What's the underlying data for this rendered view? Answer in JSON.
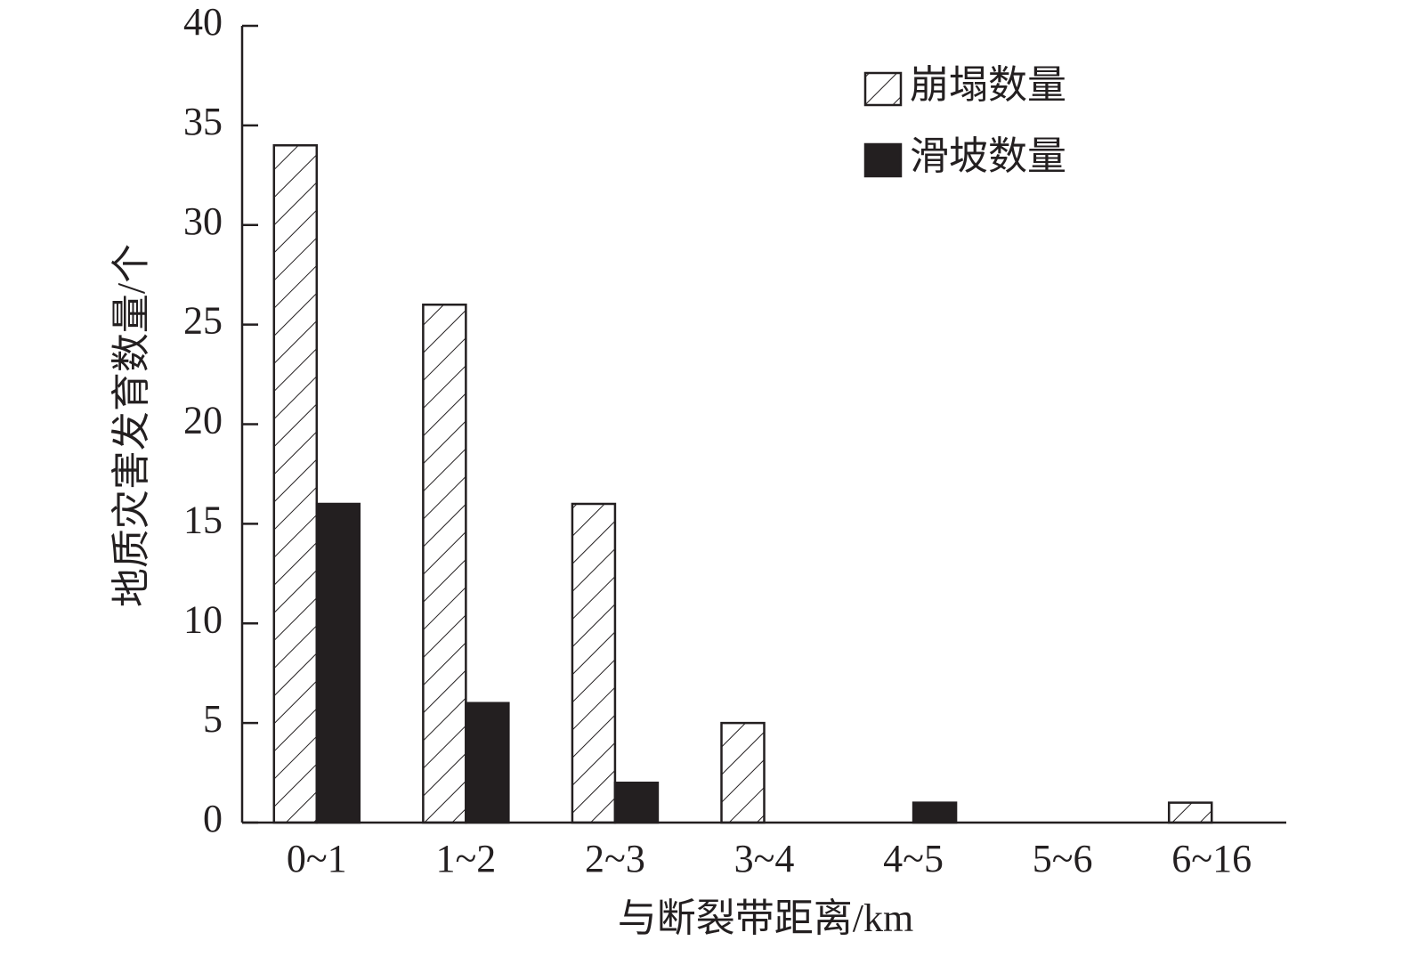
{
  "chart_data": {
    "type": "bar",
    "xlabel": "与断裂带距离/km",
    "ylabel": "地质灾害发育数量/个",
    "categories": [
      "0~1",
      "1~2",
      "2~3",
      "3~4",
      "4~5",
      "5~6",
      "6~16"
    ],
    "series": [
      {
        "name": "崩塌数量",
        "color": "#231f20",
        "hatch": true,
        "values": [
          34,
          26,
          16,
          5,
          0,
          0,
          1
        ]
      },
      {
        "name": "滑坡数量",
        "color": "#231f20",
        "hatch": false,
        "values": [
          16,
          6,
          2,
          0,
          1,
          0,
          0
        ]
      }
    ],
    "ylim": [
      0,
      40
    ],
    "yticks": [
      0,
      5,
      10,
      15,
      20,
      25,
      30,
      35,
      40
    ],
    "legend": "upper right",
    "grid": false
  }
}
